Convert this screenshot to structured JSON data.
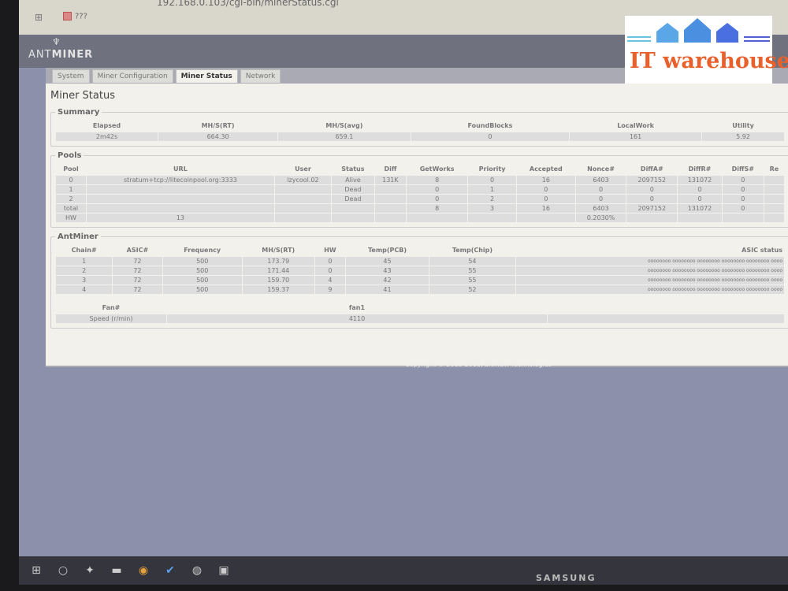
{
  "browser": {
    "url": "192.168.0.103/cgi-bin/minerStatus.cgi",
    "bookmark": "???"
  },
  "brand": {
    "logo_a": "ANT",
    "logo_b": "MINER"
  },
  "tabs": [
    {
      "label": "System"
    },
    {
      "label": "Miner Configuration"
    },
    {
      "label": "Miner Status",
      "active": true
    },
    {
      "label": "Network"
    }
  ],
  "page_title": "Miner Status",
  "summary": {
    "legend": "Summary",
    "headers": [
      "Elapsed",
      "MH/S(RT)",
      "MH/S(avg)",
      "FoundBlocks",
      "LocalWork",
      "Utility"
    ],
    "values": [
      "2m42s",
      "664.30",
      "659.1",
      "0",
      "161",
      "5.92"
    ]
  },
  "pools": {
    "legend": "Pools",
    "headers": [
      "Pool",
      "URL",
      "User",
      "Status",
      "Diff",
      "GetWorks",
      "Priority",
      "Accepted",
      "Nonce#",
      "DiffA#",
      "DiffR#",
      "DiffS#",
      "Re"
    ],
    "rows": [
      [
        "0",
        "stratum+tcp://litecoinpool.org:3333",
        "lzycool.02",
        "Alive",
        "131K",
        "8",
        "0",
        "16",
        "6403",
        "2097152",
        "131072",
        "0",
        ""
      ],
      [
        "1",
        "",
        "",
        "Dead",
        "",
        "0",
        "1",
        "0",
        "0",
        "0",
        "0",
        "0",
        ""
      ],
      [
        "2",
        "",
        "",
        "Dead",
        "",
        "0",
        "2",
        "0",
        "0",
        "0",
        "0",
        "0",
        ""
      ],
      [
        "total",
        "",
        "",
        "",
        "",
        "8",
        "3",
        "16",
        "6403",
        "2097152",
        "131072",
        "0",
        ""
      ],
      [
        "HW",
        "13",
        "",
        "",
        "",
        "",
        "",
        "",
        "0.2030%",
        "",
        "",
        "",
        ""
      ]
    ]
  },
  "antminer": {
    "legend": "AntMiner",
    "headers": [
      "Chain#",
      "ASIC#",
      "Frequency",
      "MH/S(RT)",
      "HW",
      "Temp(PCB)",
      "Temp(Chip)",
      "ASIC status"
    ],
    "rows": [
      [
        "1",
        "72",
        "500",
        "173.79",
        "0",
        "45",
        "54",
        "oooooooo oooooooo oooooooo oooooooo oooooooo oooo"
      ],
      [
        "2",
        "72",
        "500",
        "171.44",
        "0",
        "43",
        "55",
        "oooooooo oooooooo oooooooo oooooooo oooooooo oooo"
      ],
      [
        "3",
        "72",
        "500",
        "159.70",
        "4",
        "42",
        "55",
        "oooooooo oooooooo oooooooo oooooooo oooooooo oooo"
      ],
      [
        "4",
        "72",
        "500",
        "159.37",
        "9",
        "41",
        "52",
        "oooooooo oooooooo oooooooo oooooooo oooooooo oooo"
      ]
    ]
  },
  "fans": {
    "header_label": "Fan#",
    "fan_name": "fan1",
    "speed_label": "Speed (r/min)",
    "speed": "4110"
  },
  "footer": {
    "copyright": "Copyright © 2013-2018, Bitmain Technologies"
  },
  "monitor_brand": "SAMSUNG",
  "watermark": {
    "text": "IT warehouse",
    "colors": [
      "#e8602c",
      "#4a8fe0"
    ]
  }
}
